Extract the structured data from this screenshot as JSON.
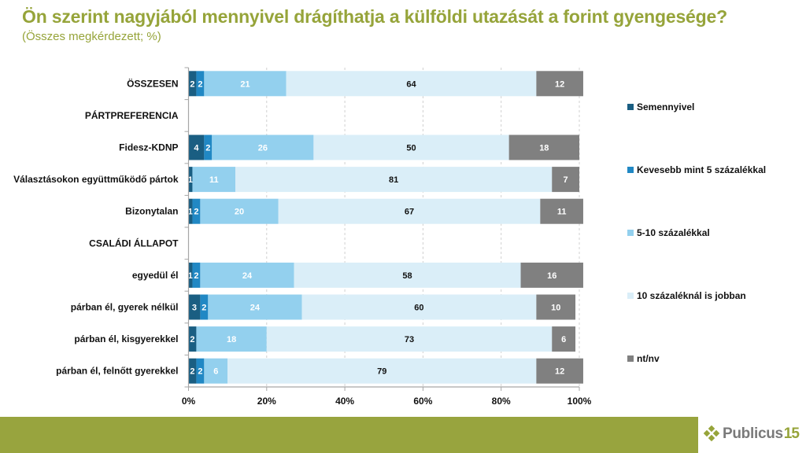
{
  "header": {
    "title": "Ön szerint nagyjából mennyivel drágíthatja a külföldi utazását a forint gyengesége?",
    "subtitle": "(Összes megkérdezett; %)"
  },
  "colors": {
    "title": "#96a43a",
    "footer": "#98a43e"
  },
  "chart_data": {
    "type": "bar",
    "orientation": "horizontal",
    "stacked": "percent",
    "title": "Ön szerint nagyjából mennyivel drágíthatja a külföldi utazását a forint gyengesége?",
    "subtitle": "(Összes megkérdezett; %)",
    "xlabel": "",
    "ylabel": "",
    "xlim": [
      0,
      100
    ],
    "x_ticks": [
      "0%",
      "20%",
      "40%",
      "60%",
      "80%",
      "100%"
    ],
    "grid": "vertical dashed",
    "legend_position": "right",
    "categories": [
      "ÖSSZESEN",
      "PÁRTPREFERENCIA",
      "Fidesz-KDNP",
      "Választásokon együttműködő pártok",
      "Bizonytalan",
      "CSALÁDI ÁLLAPOT",
      "egyedül él",
      "párban él, gyerek nélkül",
      "párban él, kisgyerekkel",
      "párban él, felnőtt gyerekkel"
    ],
    "series": [
      {
        "name": "Semennyivel",
        "color": "#1a5e82",
        "label_color": "light",
        "values": [
          2,
          null,
          4,
          1,
          1,
          null,
          1,
          3,
          2,
          2
        ]
      },
      {
        "name": "Kevesebb mint 5 százalékkal",
        "color": "#2188c4",
        "label_color": "light",
        "values": [
          2,
          null,
          2,
          0,
          2,
          null,
          2,
          2,
          0,
          2
        ]
      },
      {
        "name": "5-10 százalékkal",
        "color": "#93d0ee",
        "label_color": "light",
        "values": [
          21,
          null,
          26,
          11,
          20,
          null,
          24,
          24,
          18,
          6
        ]
      },
      {
        "name": "10 százaléknál is jobban",
        "color": "#daeef8",
        "label_color": "dark",
        "values": [
          64,
          null,
          50,
          81,
          67,
          null,
          58,
          60,
          73,
          79
        ]
      },
      {
        "name": "nt/nv",
        "color": "#808080",
        "label_color": "light",
        "values": [
          12,
          null,
          18,
          7,
          11,
          null,
          16,
          10,
          6,
          12
        ]
      }
    ]
  },
  "logo": {
    "text": "Publicus",
    "number": "15"
  }
}
